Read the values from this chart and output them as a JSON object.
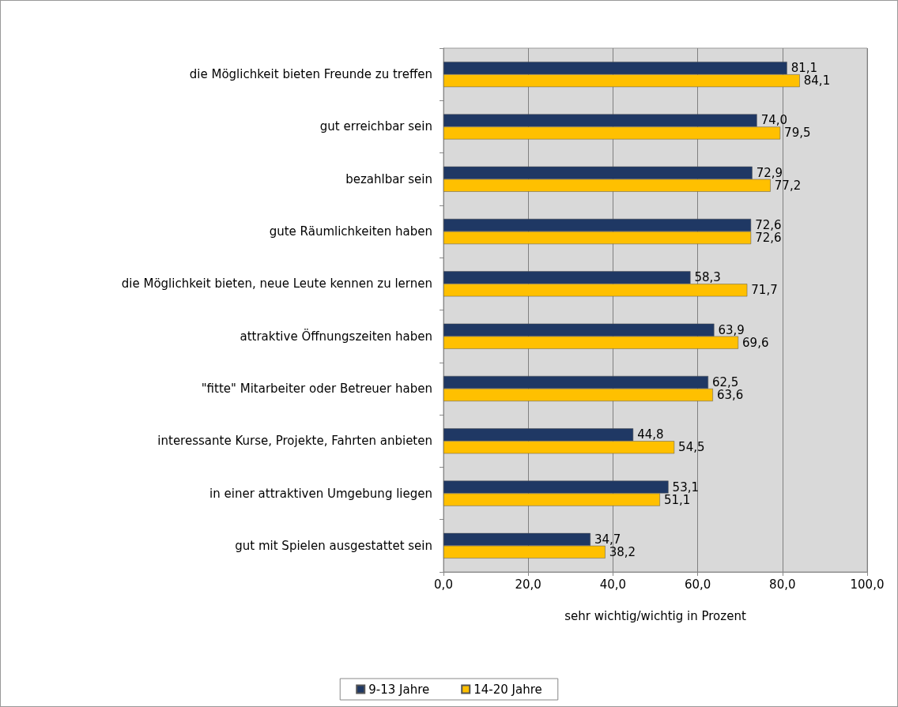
{
  "chart_data": {
    "type": "bar",
    "orientation": "horizontal",
    "xlabel": "sehr wichtig/wichtig in Prozent",
    "categories": [
      "die Möglichkeit bieten Freunde zu treffen",
      "gut erreichbar sein",
      "bezahlbar sein",
      "gute Räumlichkeiten haben",
      "die Möglichkeit bieten, neue Leute kennen zu lernen",
      "attraktive Öffnungszeiten haben",
      "\"fitte\" Mitarbeiter oder Betreuer haben",
      "interessante Kurse, Projekte, Fahrten anbieten",
      "in einer attraktiven Umgebung liegen",
      "gut mit Spielen ausgestattet sein"
    ],
    "series": [
      {
        "name": "9-13 Jahre",
        "color": "#1f3864",
        "values": [
          81.1,
          74.0,
          72.9,
          72.6,
          58.3,
          63.9,
          62.5,
          44.8,
          53.1,
          34.7
        ],
        "value_labels": [
          "81,1",
          "74,0",
          "72,9",
          "72,6",
          "58,3",
          "63,9",
          "62,5",
          "44,8",
          "53,1",
          "34,7"
        ]
      },
      {
        "name": "14-20 Jahre",
        "color": "#ffc000",
        "values": [
          84.1,
          79.5,
          77.2,
          72.6,
          71.7,
          69.6,
          63.6,
          54.5,
          51.1,
          38.2
        ],
        "value_labels": [
          "84,1",
          "79,5",
          "77,2",
          "72,6",
          "71,7",
          "69,6",
          "63,6",
          "54,5",
          "51,1",
          "38,2"
        ]
      }
    ],
    "xlim": [
      0,
      100
    ],
    "xticks": [
      {
        "value": 0,
        "label": "0,0"
      },
      {
        "value": 20,
        "label": "20,0"
      },
      {
        "value": 40,
        "label": "40,0"
      },
      {
        "value": 60,
        "label": "60,0"
      },
      {
        "value": 80,
        "label": "80,0"
      },
      {
        "value": 100,
        "label": "100,0"
      }
    ],
    "grid": "x",
    "legend": "bottom"
  }
}
